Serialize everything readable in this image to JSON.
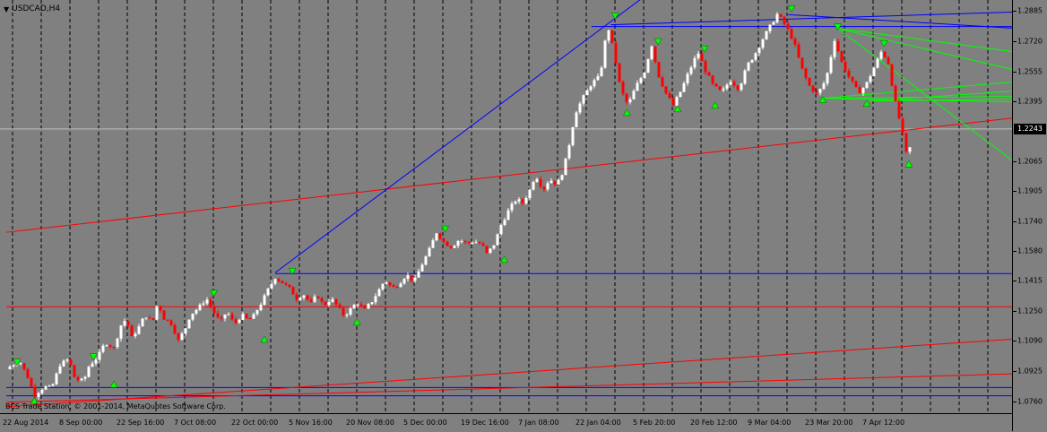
{
  "window": {
    "symbol_title": "USDCAD,H4",
    "copyright": "BCS Trade Station, © 2001-2014, MetaQuotes Software Corp."
  },
  "icons": {
    "dropdown": "triangle-down-icon"
  },
  "colors": {
    "background": "#808080",
    "grid": "#000000",
    "bull_candle": "#ffffff",
    "bear_candle": "#ff0000",
    "support_resistance": "#0000ff",
    "trend_red": "#ff0000",
    "fan_green": "#00ff00",
    "fractal_marker": "#00ff00",
    "current_price_bg": "#000000"
  },
  "chart_data": {
    "type": "candlestick",
    "symbol": "USDCAD",
    "timeframe": "H4",
    "ylim": [
      1.0705,
      1.2935
    ],
    "price_ticks": [
      "1.2885",
      "1.2720",
      "1.2555",
      "1.2395",
      "1.2243",
      "1.2065",
      "1.1905",
      "1.1740",
      "1.1580",
      "1.1415",
      "1.1250",
      "1.1090",
      "1.0925",
      "1.0760"
    ],
    "current_price": "1.2243",
    "time_labels": [
      "22 Aug 2014",
      "8 Sep 00:00",
      "22 Sep 16:00",
      "7 Oct 08:00",
      "22 Oct 00:00",
      "5 Nov 16:00",
      "20 Nov 08:00",
      "5 Dec 00:00",
      "19 Dec 16:00",
      "7 Jan 08:00",
      "22 Jan 04:00",
      "5 Feb 20:00",
      "20 Feb 12:00",
      "9 Mar 04:00",
      "23 Mar 20:00",
      "7 Apr 12:00"
    ],
    "price_path": [
      [
        0,
        1.0935
      ],
      [
        1.2,
        1.0985
      ],
      [
        2.1,
        1.088
      ],
      [
        2.6,
        1.079
      ],
      [
        3.5,
        1.084
      ],
      [
        4.2,
        1.083
      ],
      [
        5.0,
        1.096
      ],
      [
        5.8,
        1.099
      ],
      [
        6.4,
        1.088
      ],
      [
        7.2,
        1.087
      ],
      [
        7.7,
        1.0955
      ],
      [
        8.5,
        1.1
      ],
      [
        9.2,
        1.108
      ],
      [
        10.0,
        1.105
      ],
      [
        10.7,
        1.118
      ],
      [
        11.2,
        1.121
      ],
      [
        11.6,
        1.11
      ],
      [
        12.3,
        1.116
      ],
      [
        12.9,
        1.123
      ],
      [
        13.6,
        1.119
      ],
      [
        14.1,
        1.13
      ],
      [
        14.6,
        1.1215
      ],
      [
        15.4,
        1.118
      ],
      [
        16.0,
        1.109
      ],
      [
        16.6,
        1.115
      ],
      [
        17.1,
        1.123
      ],
      [
        17.9,
        1.127
      ],
      [
        18.6,
        1.132
      ],
      [
        19.3,
        1.1245
      ],
      [
        19.9,
        1.119
      ],
      [
        20.5,
        1.125
      ],
      [
        21.2,
        1.118
      ],
      [
        21.9,
        1.123
      ],
      [
        22.5,
        1.12
      ],
      [
        23.0,
        1.1225
      ],
      [
        23.8,
        1.1305
      ],
      [
        24.4,
        1.1375
      ],
      [
        25.0,
        1.1435
      ],
      [
        25.7,
        1.1405
      ],
      [
        26.4,
        1.137
      ],
      [
        27.0,
        1.132
      ],
      [
        27.6,
        1.1345
      ],
      [
        28.3,
        1.129
      ],
      [
        28.9,
        1.134
      ],
      [
        29.5,
        1.128
      ],
      [
        30.2,
        1.132
      ],
      [
        30.8,
        1.1275
      ],
      [
        31.4,
        1.1225
      ],
      [
        32.0,
        1.126
      ],
      [
        32.6,
        1.13
      ],
      [
        33.3,
        1.1255
      ],
      [
        34.0,
        1.1305
      ],
      [
        34.6,
        1.136
      ],
      [
        35.2,
        1.142
      ],
      [
        35.9,
        1.1375
      ],
      [
        36.5,
        1.14
      ],
      [
        37.2,
        1.145
      ],
      [
        37.9,
        1.141
      ],
      [
        38.6,
        1.15
      ],
      [
        39.3,
        1.158
      ],
      [
        40.0,
        1.168
      ],
      [
        40.7,
        1.1625
      ],
      [
        41.4,
        1.16
      ],
      [
        42.1,
        1.164
      ],
      [
        42.8,
        1.162
      ],
      [
        43.5,
        1.163
      ],
      [
        44.2,
        1.1615
      ],
      [
        44.7,
        1.156
      ],
      [
        45.4,
        1.162
      ],
      [
        46.0,
        1.172
      ],
      [
        46.7,
        1.18
      ],
      [
        47.4,
        1.186
      ],
      [
        48.0,
        1.184
      ],
      [
        48.6,
        1.19
      ],
      [
        49.2,
        1.1995
      ],
      [
        49.9,
        1.191
      ],
      [
        50.5,
        1.197
      ],
      [
        51.2,
        1.194
      ],
      [
        51.8,
        1.202
      ],
      [
        52.3,
        1.215
      ],
      [
        52.9,
        1.233
      ],
      [
        53.6,
        1.241
      ],
      [
        54.4,
        1.249
      ],
      [
        55.2,
        1.253
      ],
      [
        55.9,
        1.281
      ],
      [
        56.5,
        1.266
      ],
      [
        57.1,
        1.246
      ],
      [
        57.8,
        1.237
      ],
      [
        58.5,
        1.247
      ],
      [
        59.3,
        1.255
      ],
      [
        60.0,
        1.27
      ],
      [
        60.6,
        1.254
      ],
      [
        61.3,
        1.244
      ],
      [
        62.0,
        1.237
      ],
      [
        62.8,
        1.246
      ],
      [
        63.5,
        1.256
      ],
      [
        64.3,
        1.266
      ],
      [
        65.0,
        1.256
      ],
      [
        65.7,
        1.248
      ],
      [
        66.5,
        1.244
      ],
      [
        67.3,
        1.251
      ],
      [
        68.1,
        1.246
      ],
      [
        68.9,
        1.259
      ],
      [
        69.6,
        1.265
      ],
      [
        70.3,
        1.273
      ],
      [
        71.0,
        1.28
      ],
      [
        71.7,
        1.287
      ],
      [
        72.5,
        1.28
      ],
      [
        73.2,
        1.272
      ],
      [
        73.9,
        1.258
      ],
      [
        74.6,
        1.248
      ],
      [
        75.4,
        1.243
      ],
      [
        76.2,
        1.251
      ],
      [
        77.0,
        1.273
      ],
      [
        77.7,
        1.26
      ],
      [
        78.4,
        1.252
      ],
      [
        79.2,
        1.244
      ],
      [
        79.9,
        1.248
      ],
      [
        80.7,
        1.258
      ],
      [
        81.4,
        1.267
      ],
      [
        82.0,
        1.26
      ],
      [
        82.6,
        1.24
      ],
      [
        83.2,
        1.225
      ],
      [
        83.8,
        1.207
      ],
      [
        84.3,
        1.2243
      ]
    ],
    "fractals": [
      {
        "bar": 1.0,
        "price": 1.0965,
        "type": "up"
      },
      {
        "bar": 2.6,
        "price": 1.077,
        "type": "down"
      },
      {
        "bar": 8.1,
        "price": 1.0995,
        "type": "up"
      },
      {
        "bar": 10.0,
        "price": 1.086,
        "type": "down"
      },
      {
        "bar": 19.3,
        "price": 1.134,
        "type": "up"
      },
      {
        "bar": 24.0,
        "price": 1.1105,
        "type": "down"
      },
      {
        "bar": 26.6,
        "price": 1.146,
        "type": "up"
      },
      {
        "bar": 32.6,
        "price": 1.12,
        "type": "down"
      },
      {
        "bar": 40.8,
        "price": 1.169,
        "type": "up"
      },
      {
        "bar": 46.3,
        "price": 1.154,
        "type": "down"
      },
      {
        "bar": 56.6,
        "price": 1.285,
        "type": "up"
      },
      {
        "bar": 57.7,
        "price": 1.234,
        "type": "down"
      },
      {
        "bar": 60.6,
        "price": 1.271,
        "type": "up"
      },
      {
        "bar": 62.4,
        "price": 1.236,
        "type": "down"
      },
      {
        "bar": 64.9,
        "price": 1.267,
        "type": "up"
      },
      {
        "bar": 65.9,
        "price": 1.238,
        "type": "down"
      },
      {
        "bar": 73.0,
        "price": 1.289,
        "type": "up"
      },
      {
        "bar": 75.9,
        "price": 1.241,
        "type": "down"
      },
      {
        "bar": 77.3,
        "price": 1.279,
        "type": "up"
      },
      {
        "bar": 80.0,
        "price": 1.239,
        "type": "down"
      },
      {
        "bar": 81.6,
        "price": 1.27,
        "type": "up"
      },
      {
        "bar": 83.9,
        "price": 1.206,
        "type": "down"
      }
    ],
    "horizontal_lines": [
      {
        "price": 1.2243,
        "color": "#c0c0c0"
      },
      {
        "price": 1.1455,
        "color": "#0000ff",
        "from_bar": 25.0
      },
      {
        "price": 1.1275,
        "color": "#ff0000",
        "from_bar": 0
      },
      {
        "price": 1.0835,
        "color": "#0000ff",
        "from_bar": 0
      },
      {
        "price": 1.079,
        "color": "#0000ff",
        "from_bar": 0
      }
    ],
    "trend_lines": [
      {
        "from": [
          0,
          1.168
        ],
        "to": [
          94,
          1.2305
        ],
        "color": "#ff0000"
      },
      {
        "from": [
          0,
          1.073
        ],
        "to": [
          94,
          1.11
        ],
        "color": "#ff0000"
      },
      {
        "from": [
          0,
          1.0755
        ],
        "to": [
          94,
          1.091
        ],
        "color": "#ff0000"
      },
      {
        "from": [
          25.0,
          1.146
        ],
        "to": [
          59.8,
          1.2985
        ],
        "color": "#0000ff"
      },
      {
        "from": [
          54.4,
          1.28
        ],
        "to": [
          94,
          1.28
        ],
        "color": "#0000ff"
      },
      {
        "from": [
          56.2,
          1.281
        ],
        "to": [
          94,
          1.288
        ],
        "color": "#0000ff"
      },
      {
        "from": [
          72.7,
          1.2865
        ],
        "to": [
          94,
          1.279
        ],
        "color": "#0000ff"
      },
      {
        "from": [
          77.3,
          1.279
        ],
        "to": [
          94,
          1.256
        ],
        "color": "#00ff00"
      },
      {
        "from": [
          77.3,
          1.279
        ],
        "to": [
          94,
          1.266
        ],
        "color": "#00ff00"
      },
      {
        "from": [
          77.3,
          1.279
        ],
        "to": [
          94,
          1.205
        ],
        "color": "#00ff00"
      },
      {
        "from": [
          75.9,
          1.241
        ],
        "to": [
          94,
          1.25
        ],
        "color": "#00ff00"
      },
      {
        "from": [
          75.9,
          1.241
        ],
        "to": [
          94,
          1.242
        ],
        "color": "#00ff00"
      },
      {
        "from": [
          75.9,
          1.241
        ],
        "to": [
          94,
          1.239
        ],
        "color": "#00ff00"
      },
      {
        "from": [
          80.2,
          1.2395
        ],
        "to": [
          94,
          1.245
        ],
        "color": "#00ff00"
      },
      {
        "from": [
          80.2,
          1.2395
        ],
        "to": [
          94,
          1.2405
        ],
        "color": "#00ff00"
      }
    ]
  }
}
